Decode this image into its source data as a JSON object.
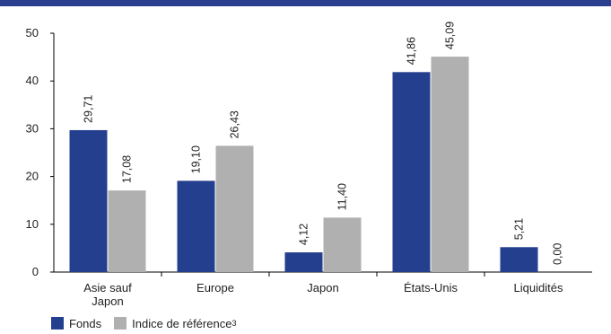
{
  "colors": {
    "accent_bar": "#2a3f8f",
    "fonds": "#253f8f",
    "indice": "#b0b0b0"
  },
  "chart_data": {
    "type": "bar",
    "categories": [
      [
        "Asie sauf",
        "Japon"
      ],
      [
        "Europe"
      ],
      [
        "Japon"
      ],
      [
        "États-Unis"
      ],
      [
        "Liquidités"
      ]
    ],
    "series": [
      {
        "name": "Fonds",
        "values": [
          29.71,
          19.1,
          4.12,
          41.86,
          5.21
        ],
        "labels": [
          "29,71",
          "19,10",
          "4,12",
          "41,86",
          "5,21"
        ]
      },
      {
        "name": "Indice de référence",
        "name_sup": "3",
        "values": [
          17.08,
          26.43,
          11.4,
          45.09,
          0.0
        ],
        "labels": [
          "17,08",
          "26,43",
          "11,40",
          "45,09",
          "0,00"
        ]
      }
    ],
    "ylim": [
      0,
      50
    ],
    "yticks": [
      0,
      10,
      20,
      30,
      40,
      50
    ],
    "grid": false,
    "legend_position": "bottom-left"
  }
}
